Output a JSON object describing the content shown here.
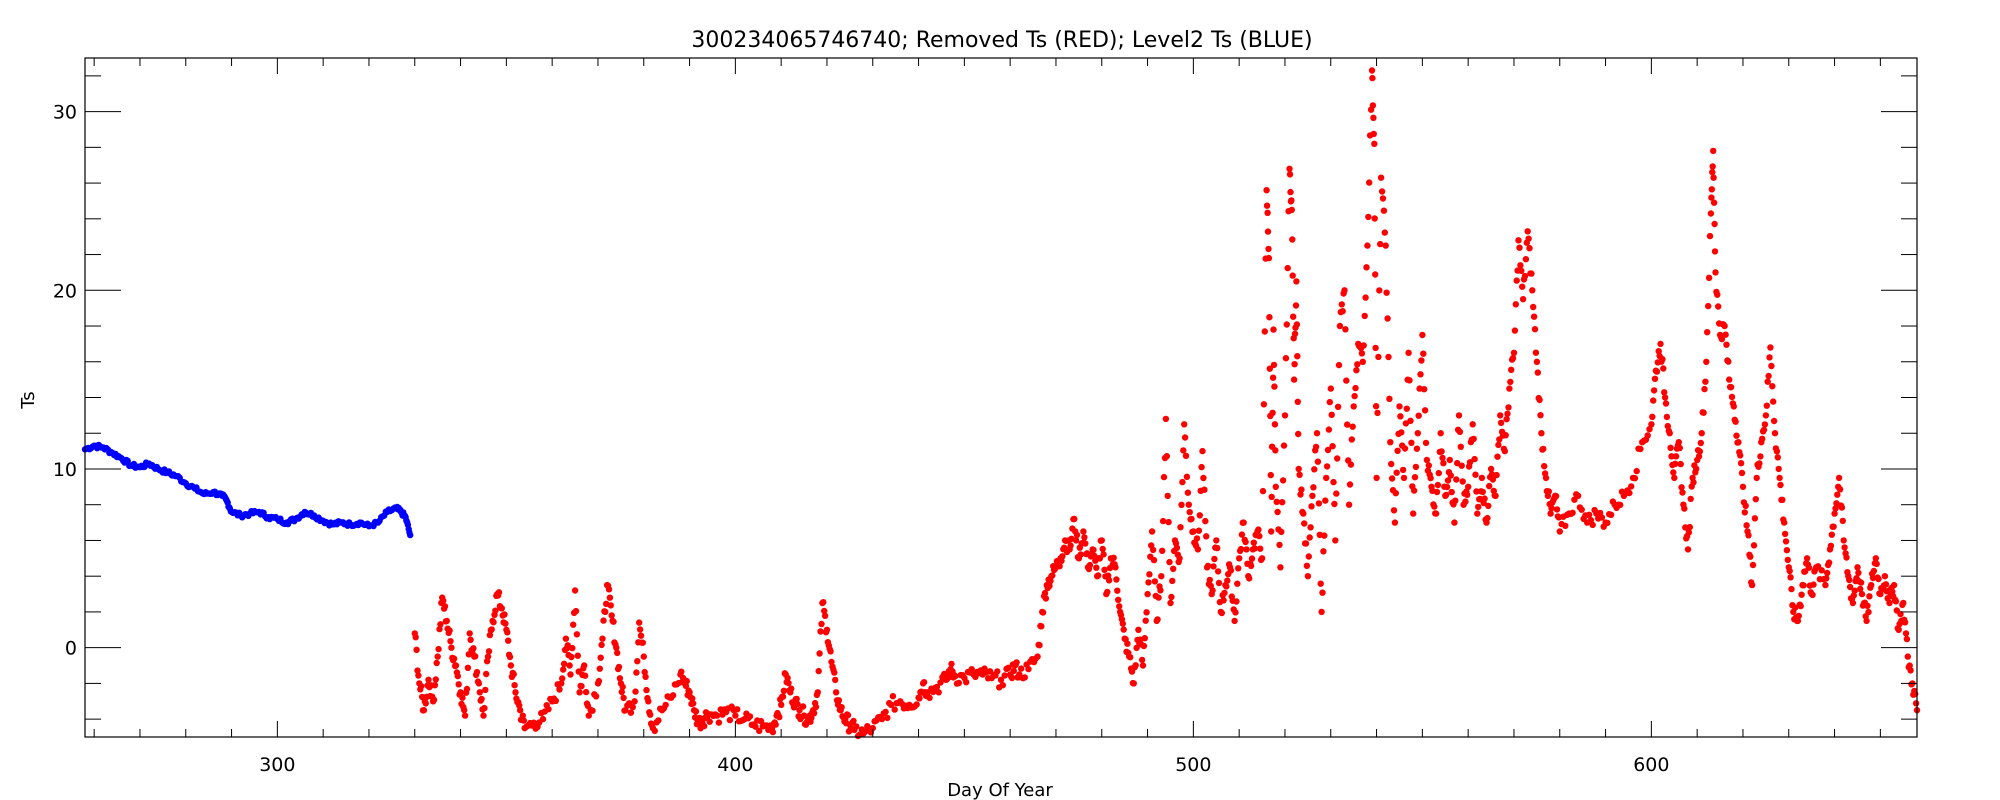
{
  "chart_data": {
    "type": "scatter",
    "title": "300234065746740; Removed Ts (RED); Level2 Ts (BLUE)",
    "xlabel": "Day Of Year",
    "ylabel": "Ts",
    "xlim": [
      258,
      658
    ],
    "ylim": [
      -5,
      33
    ],
    "xticks": [
      300,
      400,
      500,
      600
    ],
    "yticks": [
      0,
      10,
      20,
      30
    ],
    "grid": false,
    "series": [
      {
        "color": "#0000ff",
        "points": [
          [
            258,
            11.1
          ],
          [
            260,
            11.3
          ],
          [
            262,
            11.2
          ],
          [
            264,
            10.9
          ],
          [
            266,
            10.6
          ],
          [
            268,
            10.2
          ],
          [
            270,
            10.1
          ],
          [
            272,
            10.3
          ],
          [
            274,
            10.0
          ],
          [
            276,
            9.8
          ],
          [
            278,
            9.6
          ],
          [
            280,
            9.2
          ],
          [
            282,
            8.9
          ],
          [
            284,
            8.6
          ],
          [
            286,
            8.7
          ],
          [
            288,
            8.5
          ],
          [
            289,
            8.2
          ],
          [
            290,
            7.6
          ],
          [
            292,
            7.4
          ],
          [
            294,
            7.5
          ],
          [
            296,
            7.6
          ],
          [
            298,
            7.3
          ],
          [
            300,
            7.2
          ],
          [
            302,
            7.0
          ],
          [
            304,
            7.2
          ],
          [
            306,
            7.6
          ],
          [
            308,
            7.4
          ],
          [
            310,
            7.1
          ],
          [
            312,
            6.9
          ],
          [
            314,
            7.0
          ],
          [
            316,
            6.9
          ],
          [
            318,
            7.0
          ],
          [
            320,
            6.8
          ],
          [
            322,
            7.0
          ],
          [
            324,
            7.6
          ],
          [
            326,
            7.8
          ],
          [
            327,
            7.6
          ],
          [
            328,
            7.3
          ],
          [
            329,
            6.3
          ]
        ]
      },
      {
        "color": "#ff0000",
        "points": [
          [
            330,
            0.8
          ],
          [
            331,
            -2.0
          ],
          [
            332,
            -3.5
          ],
          [
            333,
            -1.8
          ],
          [
            334,
            -3.0
          ],
          [
            335,
            -0.5
          ],
          [
            336,
            2.8
          ],
          [
            337,
            1.5
          ],
          [
            338,
            0.0
          ],
          [
            339,
            -1.0
          ],
          [
            340,
            -2.5
          ],
          [
            341,
            -3.8
          ],
          [
            342,
            0.8
          ],
          [
            343,
            -0.5
          ],
          [
            344,
            -2.0
          ],
          [
            345,
            -3.8
          ],
          [
            346,
            -0.5
          ],
          [
            347,
            1.5
          ],
          [
            348,
            3.0
          ],
          [
            349,
            2.2
          ],
          [
            350,
            1.0
          ],
          [
            351,
            -1.0
          ],
          [
            352,
            -2.5
          ],
          [
            353,
            -3.5
          ],
          [
            354,
            -4.5
          ],
          [
            356,
            -4.2
          ],
          [
            358,
            -4.0
          ],
          [
            360,
            -3.0
          ],
          [
            362,
            -2.0
          ],
          [
            363,
            0.5
          ],
          [
            364,
            -1.5
          ],
          [
            365,
            3.2
          ],
          [
            366,
            -2.5
          ],
          [
            367,
            -1.0
          ],
          [
            368,
            -3.8
          ],
          [
            370,
            -2.0
          ],
          [
            371,
            0.5
          ],
          [
            372,
            3.5
          ],
          [
            373,
            1.8
          ],
          [
            374,
            0.0
          ],
          [
            375,
            -2.0
          ],
          [
            376,
            -3.5
          ],
          [
            378,
            -3.0
          ],
          [
            379,
            1.4
          ],
          [
            380,
            -0.5
          ],
          [
            381,
            -3.0
          ],
          [
            382,
            -4.5
          ],
          [
            384,
            -3.5
          ],
          [
            386,
            -2.8
          ],
          [
            388,
            -1.5
          ],
          [
            389,
            -2.0
          ],
          [
            390,
            -2.5
          ],
          [
            391,
            -3.5
          ],
          [
            392,
            -4.2
          ],
          [
            393,
            -4.0
          ],
          [
            394,
            -3.7
          ],
          [
            396,
            -3.8
          ],
          [
            398,
            -3.6
          ],
          [
            400,
            -3.8
          ],
          [
            402,
            -4.0
          ],
          [
            404,
            -4.3
          ],
          [
            406,
            -4.4
          ],
          [
            408,
            -4.5
          ],
          [
            409,
            -3.8
          ],
          [
            410,
            -3.2
          ],
          [
            411,
            -1.5
          ],
          [
            412,
            -2.5
          ],
          [
            413,
            -3.0
          ],
          [
            414,
            -3.5
          ],
          [
            415,
            -3.8
          ],
          [
            416,
            -4.0
          ],
          [
            417,
            -3.5
          ],
          [
            418,
            -2.5
          ],
          [
            419,
            2.5
          ],
          [
            420,
            1.0
          ],
          [
            421,
            -0.8
          ],
          [
            422,
            -2.5
          ],
          [
            423,
            -3.5
          ],
          [
            424,
            -4.0
          ],
          [
            425,
            -4.3
          ],
          [
            426,
            -4.6
          ],
          [
            428,
            -4.8
          ],
          [
            430,
            -4.5
          ],
          [
            432,
            -4.0
          ],
          [
            434,
            -3.2
          ],
          [
            436,
            -3.0
          ],
          [
            438,
            -3.2
          ],
          [
            440,
            -2.8
          ],
          [
            441,
            -2.0
          ],
          [
            442,
            -2.5
          ],
          [
            444,
            -2.2
          ],
          [
            446,
            -1.8
          ],
          [
            447,
            -1.2
          ],
          [
            448,
            -1.6
          ],
          [
            450,
            -1.7
          ],
          [
            452,
            -1.5
          ],
          [
            454,
            -1.5
          ],
          [
            456,
            -1.7
          ],
          [
            458,
            -1.8
          ],
          [
            460,
            -1.5
          ],
          [
            461,
            -1.0
          ],
          [
            462,
            -1.5
          ],
          [
            464,
            -1.2
          ],
          [
            466,
            -0.5
          ],
          [
            467,
            2.0
          ],
          [
            468,
            3.5
          ],
          [
            469,
            4.0
          ],
          [
            470,
            4.5
          ],
          [
            471,
            5.0
          ],
          [
            472,
            6.0
          ],
          [
            473,
            5.5
          ],
          [
            474,
            7.2
          ],
          [
            475,
            5.0
          ],
          [
            476,
            6.5
          ],
          [
            477,
            4.5
          ],
          [
            478,
            5.5
          ],
          [
            479,
            4.0
          ],
          [
            480,
            6.0
          ],
          [
            481,
            3.0
          ],
          [
            482,
            5.0
          ],
          [
            483,
            4.5
          ],
          [
            484,
            2.0
          ],
          [
            485,
            0.5
          ],
          [
            486,
            -0.5
          ],
          [
            487,
            -2.0
          ],
          [
            488,
            1.0
          ],
          [
            489,
            -1.0
          ],
          [
            490,
            3.0
          ],
          [
            491,
            6.5
          ],
          [
            492,
            1.5
          ],
          [
            493,
            4.0
          ],
          [
            494,
            12.8
          ],
          [
            495,
            2.5
          ],
          [
            496,
            6.0
          ],
          [
            497,
            5.0
          ],
          [
            498,
            12.5
          ],
          [
            499,
            8.0
          ],
          [
            500,
            6.5
          ],
          [
            501,
            5.5
          ],
          [
            502,
            11.0
          ],
          [
            503,
            4.5
          ],
          [
            504,
            3.0
          ],
          [
            505,
            6.0
          ],
          [
            506,
            2.0
          ],
          [
            507,
            3.5
          ],
          [
            508,
            4.5
          ],
          [
            509,
            1.5
          ],
          [
            510,
            5.0
          ],
          [
            511,
            7.0
          ],
          [
            512,
            4.0
          ],
          [
            513,
            5.5
          ],
          [
            514,
            6.5
          ],
          [
            515,
            5.0
          ],
          [
            516,
            25.6
          ],
          [
            516.5,
            21.8
          ],
          [
            517,
            6.5
          ],
          [
            517.5,
            17.8
          ],
          [
            518,
            9.0
          ],
          [
            519,
            4.5
          ],
          [
            520,
            13.0
          ],
          [
            521,
            26.8
          ],
          [
            521.5,
            24.5
          ],
          [
            522,
            15.0
          ],
          [
            522.5,
            20.5
          ],
          [
            523,
            10.0
          ],
          [
            524,
            7.5
          ],
          [
            525,
            4.0
          ],
          [
            526,
            8.5
          ],
          [
            527,
            12.0
          ],
          [
            528,
            2.0
          ],
          [
            529,
            9.5
          ],
          [
            530,
            14.5
          ],
          [
            531,
            6.0
          ],
          [
            532,
            18.0
          ],
          [
            533,
            20.0
          ],
          [
            534,
            8.0
          ],
          [
            535,
            13.5
          ],
          [
            536,
            17.0
          ],
          [
            537,
            16.0
          ],
          [
            538,
            22.5
          ],
          [
            539,
            32.3
          ],
          [
            539.5,
            28.2
          ],
          [
            540,
            9.5
          ],
          [
            541,
            26.3
          ],
          [
            542,
            22.5
          ],
          [
            543,
            11.5
          ],
          [
            544,
            7.0
          ],
          [
            545,
            13.5
          ],
          [
            546,
            9.5
          ],
          [
            547,
            16.5
          ],
          [
            548,
            7.5
          ],
          [
            549,
            12.0
          ],
          [
            550,
            17.5
          ],
          [
            551,
            10.5
          ],
          [
            552,
            9.0
          ],
          [
            553,
            7.5
          ],
          [
            554,
            12.0
          ],
          [
            555,
            8.5
          ],
          [
            556,
            10.5
          ],
          [
            557,
            7.0
          ],
          [
            558,
            13.0
          ],
          [
            559,
            8.0
          ],
          [
            560,
            9.0
          ],
          [
            561,
            12.5
          ],
          [
            562,
            7.5
          ],
          [
            563,
            9.5
          ],
          [
            564,
            7.0
          ],
          [
            565,
            10.0
          ],
          [
            566,
            8.5
          ],
          [
            567,
            13.0
          ],
          [
            568,
            11.0
          ],
          [
            569,
            14.5
          ],
          [
            570,
            16.5
          ],
          [
            571,
            22.8
          ],
          [
            572,
            19.5
          ],
          [
            573,
            23.3
          ],
          [
            574,
            20.0
          ],
          [
            575,
            16.0
          ],
          [
            576,
            12.0
          ],
          [
            577,
            9.5
          ],
          [
            578,
            7.5
          ],
          [
            579,
            8.5
          ],
          [
            580,
            6.5
          ],
          [
            582,
            7.5
          ],
          [
            584,
            8.5
          ],
          [
            586,
            7.0
          ],
          [
            588,
            7.5
          ],
          [
            590,
            7.0
          ],
          [
            592,
            8.0
          ],
          [
            594,
            8.5
          ],
          [
            596,
            9.5
          ],
          [
            598,
            11.5
          ],
          [
            600,
            12.5
          ],
          [
            601,
            15.5
          ],
          [
            602,
            17.0
          ],
          [
            603,
            14.0
          ],
          [
            604,
            12.0
          ],
          [
            605,
            9.5
          ],
          [
            606,
            11.5
          ],
          [
            607,
            8.0
          ],
          [
            608,
            5.5
          ],
          [
            609,
            9.5
          ],
          [
            610,
            10.5
          ],
          [
            611,
            12.0
          ],
          [
            612,
            16.0
          ],
          [
            613,
            24.3
          ],
          [
            613.5,
            27.8
          ],
          [
            614,
            21.0
          ],
          [
            615,
            17.5
          ],
          [
            616,
            18.0
          ],
          [
            617,
            15.0
          ],
          [
            618,
            13.5
          ],
          [
            619,
            11.5
          ],
          [
            620,
            9.0
          ],
          [
            621,
            6.5
          ],
          [
            622,
            3.5
          ],
          [
            623,
            9.5
          ],
          [
            624,
            11.5
          ],
          [
            625,
            13.0
          ],
          [
            626,
            16.8
          ],
          [
            627,
            12.0
          ],
          [
            628,
            9.5
          ],
          [
            629,
            7.0
          ],
          [
            630,
            4.5
          ],
          [
            631,
            2.0
          ],
          [
            632,
            1.5
          ],
          [
            633,
            3.5
          ],
          [
            634,
            5.0
          ],
          [
            635,
            3.0
          ],
          [
            636,
            4.5
          ],
          [
            638,
            3.5
          ],
          [
            639,
            5.5
          ],
          [
            640,
            7.5
          ],
          [
            641,
            9.5
          ],
          [
            642,
            6.0
          ],
          [
            643,
            4.0
          ],
          [
            644,
            2.5
          ],
          [
            645,
            4.5
          ],
          [
            646,
            3.0
          ],
          [
            647,
            1.5
          ],
          [
            648,
            3.5
          ],
          [
            649,
            5.0
          ],
          [
            650,
            3.0
          ],
          [
            651,
            4.0
          ],
          [
            652,
            2.5
          ],
          [
            653,
            3.5
          ],
          [
            654,
            1.0
          ],
          [
            655,
            2.5
          ],
          [
            656,
            -0.5
          ],
          [
            657,
            -2.0
          ],
          [
            658,
            -3.5
          ]
        ]
      }
    ]
  }
}
